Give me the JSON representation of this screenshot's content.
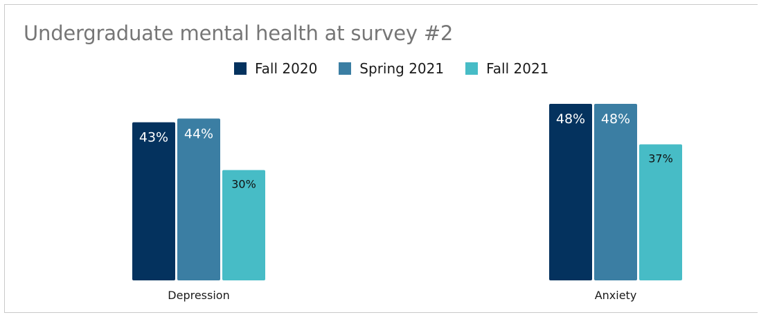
{
  "chart_data": {
    "type": "bar",
    "title": "Undergraduate mental health at survey #2",
    "categories": [
      "Depression",
      "Anxiety"
    ],
    "series": [
      {
        "name": "Fall 2020",
        "values": [
          43,
          48
        ],
        "labels": [
          "43%",
          "48%"
        ],
        "color": "#04325e",
        "label_color": "#ffffff"
      },
      {
        "name": "Spring 2021",
        "values": [
          44,
          48
        ],
        "labels": [
          "44%",
          "48%"
        ],
        "color": "#3b7ea3",
        "label_color": "#ffffff"
      },
      {
        "name": "Fall 2021",
        "values": [
          30,
          37
        ],
        "labels": [
          "30%",
          "37%"
        ],
        "color": "#47bcc6",
        "label_color": "#111111"
      }
    ],
    "ylim": [
      0,
      48
    ],
    "xlabel": "",
    "ylabel": "",
    "legend": "top-center",
    "grid": false
  }
}
